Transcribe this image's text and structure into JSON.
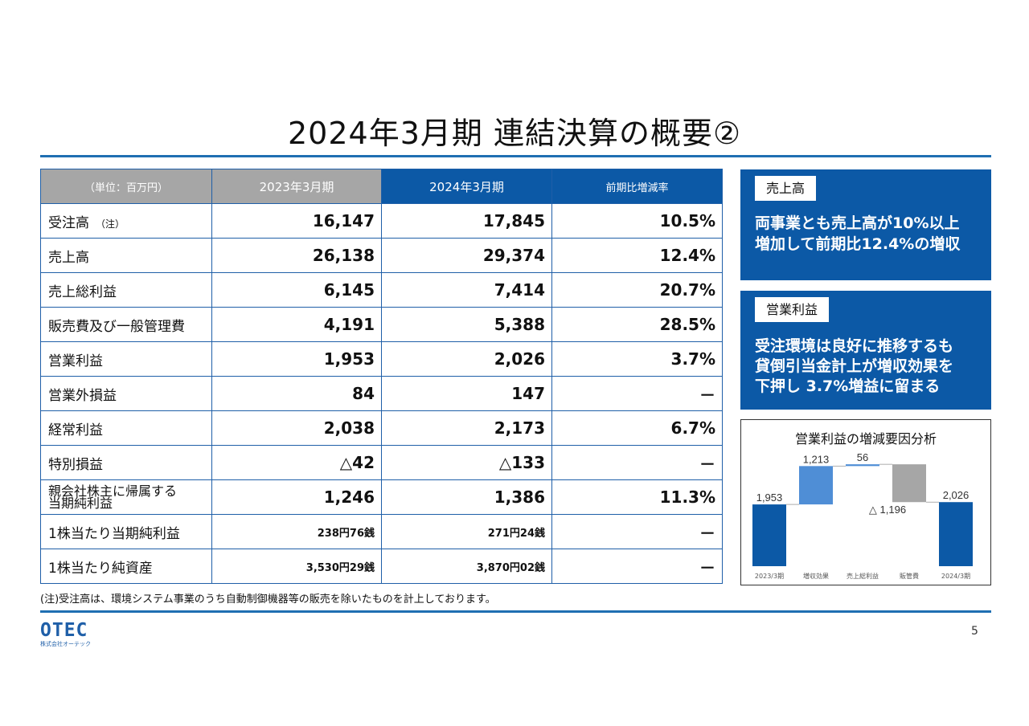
{
  "title": "2024年3月期  連結決算の概要②",
  "table": {
    "headers": [
      "（単位：百万円）",
      "2023年3月期",
      "2024年3月期",
      "前期比増減率"
    ],
    "rows": [
      {
        "label": "受注高",
        "note": "（注）",
        "v2023": "16,147",
        "v2024": "17,845",
        "rate": "10.5%"
      },
      {
        "label": "売上高",
        "v2023": "26,138",
        "v2024": "29,374",
        "rate": "12.4%"
      },
      {
        "label": "売上総利益",
        "v2023": "6,145",
        "v2024": "7,414",
        "rate": "20.7%"
      },
      {
        "label": "販売費及び一般管理費",
        "v2023": "4,191",
        "v2024": "5,388",
        "rate": "28.5%"
      },
      {
        "label": "営業利益",
        "v2023": "1,953",
        "v2024": "2,026",
        "rate": "3.7%"
      },
      {
        "label": "営業外損益",
        "v2023": "84",
        "v2024": "147",
        "rate": "－"
      },
      {
        "label": "経常利益",
        "v2023": "2,038",
        "v2024": "2,173",
        "rate": "6.7%"
      },
      {
        "label": "特別損益",
        "v2023": "△42",
        "v2024": "△133",
        "rate": "－"
      },
      {
        "label_line1": "親会社株主に帰属する",
        "label_line2": "当期純利益",
        "v2023": "1,246",
        "v2024": "1,386",
        "rate": "11.3%"
      },
      {
        "label": "1株当たり当期純利益",
        "v2023": "238円76銭",
        "v2024": "271円24銭",
        "rate": "－"
      },
      {
        "label": "1株当たり純資産",
        "v2023": "3,530円29銭",
        "v2024": "3,870円02銭",
        "rate": "－"
      }
    ]
  },
  "footnote": "(注)受注高は、環境システム事業のうち自動制御機器等の販売を除いたものを計上しております。",
  "cards": [
    {
      "tag": "売上高",
      "lines": [
        "両事業とも売上高が10%以上",
        "増加して前期比12.4%の増収"
      ]
    },
    {
      "tag": "営業利益",
      "lines": [
        "受注環境は良好に推移するも",
        "貸倒引当金計上が増収効果を",
        "下押し 3.7%増益に留まる"
      ]
    }
  ],
  "chart_data": {
    "type": "waterfall",
    "title": "営業利益の増減要因分析",
    "categories": [
      "2023/3期",
      "増収効果",
      "売上総利益",
      "販管費",
      "2024/3期"
    ],
    "values": [
      1953,
      1213,
      56,
      -1196,
      2026
    ],
    "labels": [
      "1,953",
      "1,213",
      "56",
      "△ 1,196",
      "2,026"
    ],
    "kinds": [
      "total",
      "increase",
      "increase",
      "decrease",
      "total"
    ],
    "colors": {
      "total": "#0c59a6",
      "increase": "#4f8ed6",
      "decrease": "#a6a6a6"
    }
  },
  "logo": {
    "main": "OTEC",
    "sub": "株式会社オーテック"
  },
  "page_number": "5",
  "colors": {
    "accent": "#0c59a6",
    "header_gray": "#a6a6a6",
    "rule": "#1f6fb2"
  }
}
